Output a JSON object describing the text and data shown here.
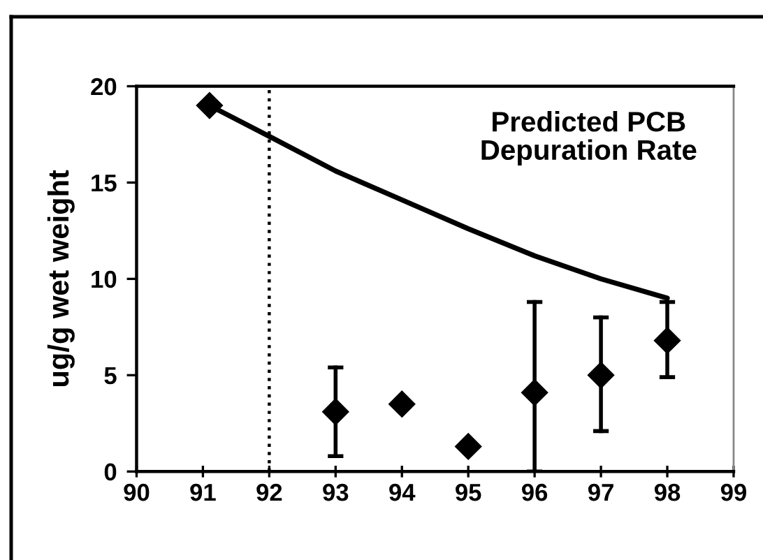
{
  "chart_data": {
    "type": "scatter",
    "ylabel": "ug/g wet weight",
    "xlim": [
      90,
      99
    ],
    "xticks": [
      90,
      91,
      92,
      93,
      94,
      95,
      96,
      97,
      98,
      99
    ],
    "ylim": [
      0,
      20
    ],
    "yticks": [
      0,
      5,
      10,
      15,
      20
    ],
    "series": [
      {
        "type": "line",
        "name": "Predicted PCB\nDepuration Rate",
        "color": "#000000",
        "x": [
          91.1,
          92.0,
          93.0,
          94.0,
          95.0,
          96.0,
          97.0,
          98.0
        ],
        "values": [
          19.0,
          17.4,
          15.6,
          14.1,
          12.6,
          11.2,
          10.0,
          9.0
        ]
      },
      {
        "color": "#000000",
        "marker": "diamond",
        "x": [
          91.1,
          93,
          94,
          95,
          96,
          97,
          98
        ],
        "values": [
          19.0,
          3.1,
          3.5,
          1.3,
          4.1,
          5.0,
          6.8
        ],
        "errors": [
          null,
          [
            0.8,
            5.4
          ],
          null,
          null,
          [
            0.0,
            8.8
          ],
          [
            2.1,
            8.0
          ],
          [
            4.9,
            8.8
          ]
        ]
      }
    ],
    "ref_lines": [
      {
        "axis": "x",
        "value": 92,
        "color": "#000000",
        "line_style": "dotted"
      }
    ]
  }
}
